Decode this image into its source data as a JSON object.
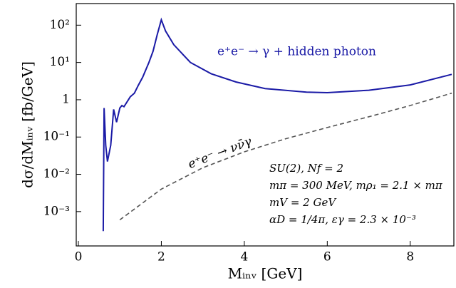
{
  "chart_data": {
    "type": "line",
    "x_label": "Mᵢₙᵥ [GeV]",
    "y_label": "dσ/dMᵢₙᵥ [fb/GeV]",
    "xlim": [
      0,
      9
    ],
    "xticks": [
      0,
      2,
      4,
      6,
      8
    ],
    "ylim": [
      0.00012,
      380
    ],
    "log_y": true,
    "yticks": [
      {
        "value": 0.001,
        "label": "10⁻³"
      },
      {
        "value": 0.01,
        "label": "10⁻²"
      },
      {
        "value": 0.1,
        "label": "10⁻¹"
      },
      1,
      {
        "value": 10,
        "label": "10¹"
      },
      {
        "value": 100,
        "label": "10²"
      }
    ],
    "series": [
      {
        "name": "e⁺e⁻ → γ + hidden photon",
        "color": "#1a1aa6",
        "dashed": false,
        "x": [
          0.6,
          0.62,
          0.66,
          0.7,
          0.78,
          0.85,
          0.92,
          1.0,
          1.05,
          1.1,
          1.18,
          1.25,
          1.35,
          1.45,
          1.55,
          1.7,
          1.8,
          1.9,
          2.0,
          2.1,
          2.3,
          2.7,
          3.2,
          3.8,
          4.5,
          5.5,
          6.0,
          7.0,
          8.0,
          9.0
        ],
        "values": [
          0.0003,
          0.6,
          0.06,
          0.022,
          0.06,
          0.55,
          0.25,
          0.6,
          0.7,
          0.65,
          0.9,
          1.2,
          1.5,
          2.5,
          4,
          10,
          20,
          55,
          140,
          70,
          30,
          10,
          5,
          3,
          2,
          1.6,
          1.55,
          1.8,
          2.5,
          4.8
        ]
      },
      {
        "name": "e⁺e⁻ → νν̄γ",
        "color": "#555555",
        "dashed": true,
        "x": [
          1.0,
          2.0,
          3.0,
          4.0,
          5.0,
          6.0,
          7.0,
          8.0,
          9.0
        ],
        "values": [
          0.0006,
          0.004,
          0.015,
          0.04,
          0.09,
          0.18,
          0.35,
          0.7,
          1.5
        ]
      }
    ],
    "annotations": [
      "SU(2), Nf = 2",
      "mπ = 300 MeV,  mρ₁ = 2.1 × mπ",
      "mV = 2 GeV",
      "αD = 1/4π, εγ = 2.3 × 10⁻³"
    ]
  }
}
